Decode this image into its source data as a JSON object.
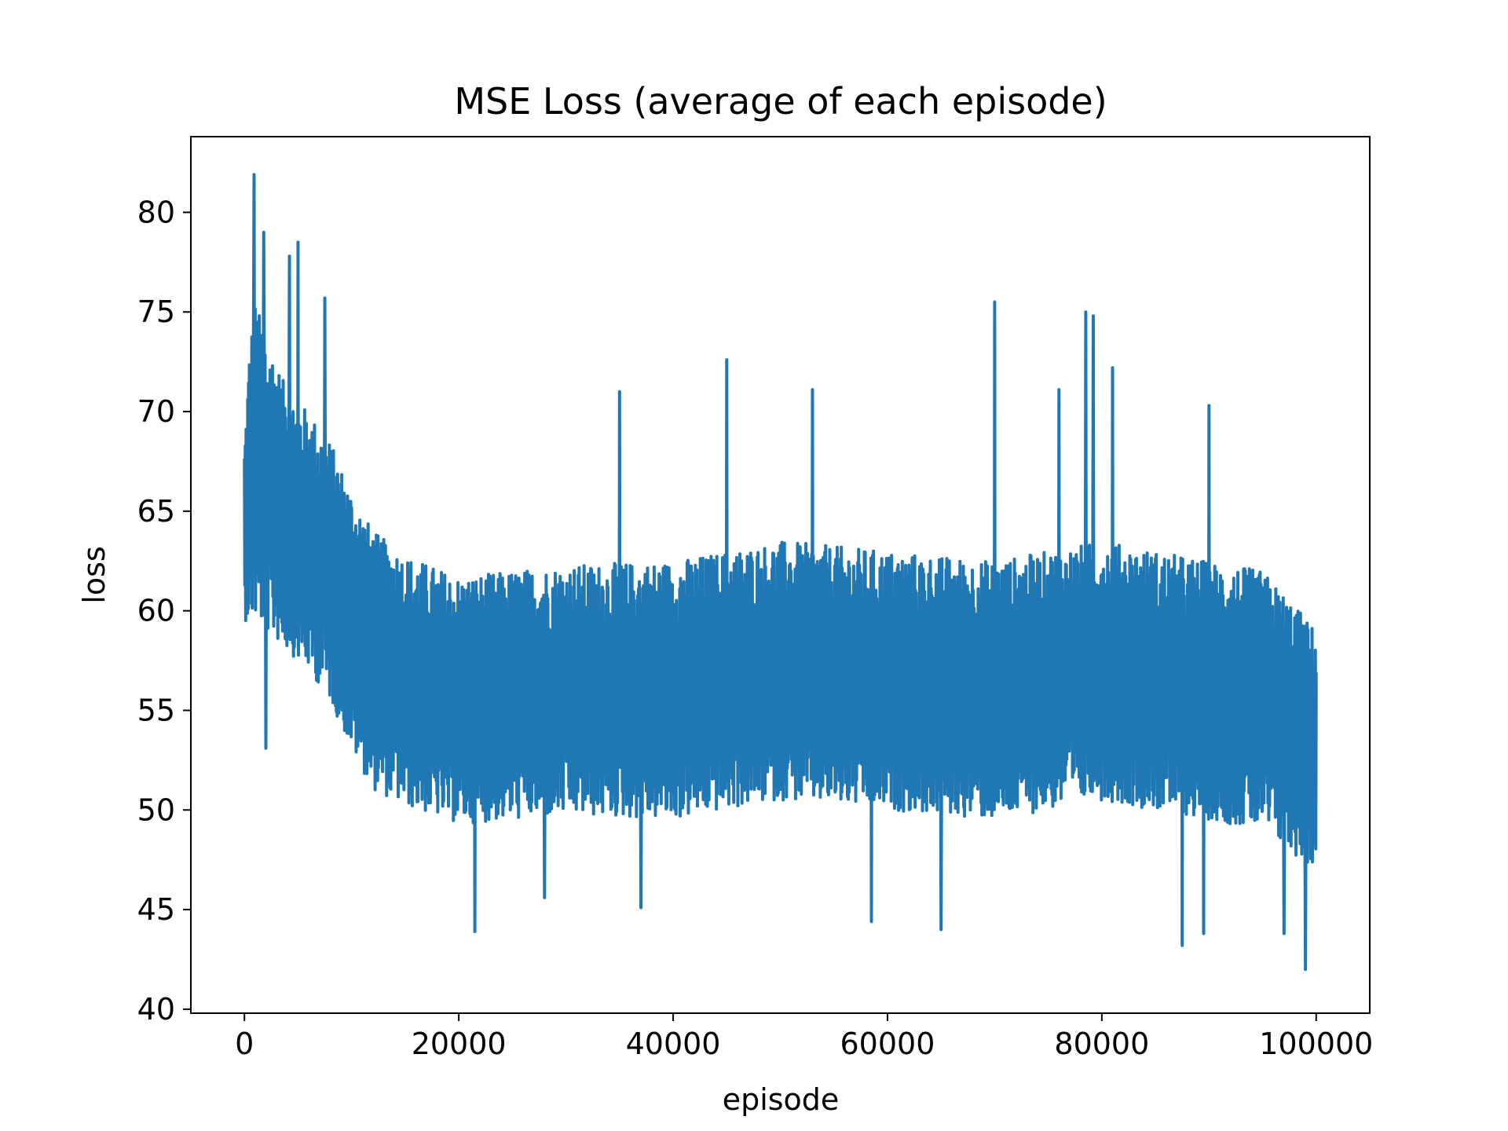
{
  "chart_data": {
    "type": "line",
    "title": "MSE Loss (average of each episode)",
    "xlabel": "episode",
    "ylabel": "loss",
    "xlim": [
      -5000,
      105000
    ],
    "ylim": [
      39.8,
      83.8
    ],
    "xticks": [
      0,
      20000,
      40000,
      60000,
      80000,
      100000
    ],
    "xtick_labels": [
      "0",
      "20000",
      "40000",
      "60000",
      "80000",
      "100000"
    ],
    "yticks": [
      40,
      45,
      50,
      55,
      60,
      65,
      70,
      75,
      80
    ],
    "ytick_labels": [
      "40",
      "45",
      "50",
      "55",
      "60",
      "65",
      "70",
      "75",
      "80"
    ],
    "grid": false,
    "legend": "none",
    "series": [
      {
        "color": "#1f77b4",
        "envelope_x": [
          0,
          500,
          1000,
          2000,
          4000,
          6000,
          8000,
          10000,
          12000,
          15000,
          20000,
          30000,
          40000,
          50000,
          60000,
          70000,
          80000,
          90000,
          95000,
          98000,
          100000
        ],
        "envelope_center": [
          64.0,
          66.5,
          67.5,
          66.5,
          64.5,
          63.5,
          62.0,
          59.5,
          57.5,
          56.5,
          55.5,
          56.0,
          56.0,
          57.0,
          56.5,
          56.0,
          57.0,
          56.0,
          55.5,
          54.0,
          53.0
        ],
        "envelope_halfwidth": [
          4.5,
          7.0,
          8.0,
          7.5,
          6.5,
          6.5,
          6.5,
          6.5,
          6.5,
          6.3,
          6.2,
          6.3,
          6.5,
          6.5,
          6.5,
          6.5,
          6.5,
          6.5,
          6.5,
          6.3,
          6.0
        ],
        "peaks": [
          {
            "x": 900,
            "y": 81.9
          },
          {
            "x": 1800,
            "y": 79.0
          },
          {
            "x": 5000,
            "y": 78.5
          },
          {
            "x": 4200,
            "y": 77.8
          },
          {
            "x": 7500,
            "y": 75.7
          },
          {
            "x": 45000,
            "y": 72.6
          },
          {
            "x": 70000,
            "y": 75.5
          },
          {
            "x": 78500,
            "y": 75.0
          },
          {
            "x": 79200,
            "y": 74.8
          },
          {
            "x": 81000,
            "y": 72.2
          },
          {
            "x": 35000,
            "y": 71.0
          },
          {
            "x": 53000,
            "y": 71.1
          },
          {
            "x": 76000,
            "y": 71.1
          },
          {
            "x": 90000,
            "y": 70.3
          }
        ],
        "troughs": [
          {
            "x": 2000,
            "y": 53.1
          },
          {
            "x": 21500,
            "y": 43.9
          },
          {
            "x": 28000,
            "y": 45.6
          },
          {
            "x": 37000,
            "y": 45.1
          },
          {
            "x": 58500,
            "y": 44.4
          },
          {
            "x": 65000,
            "y": 44.0
          },
          {
            "x": 87500,
            "y": 43.2
          },
          {
            "x": 89500,
            "y": 43.8
          },
          {
            "x": 97000,
            "y": 43.8
          },
          {
            "x": 99000,
            "y": 42.0
          }
        ]
      }
    ]
  }
}
